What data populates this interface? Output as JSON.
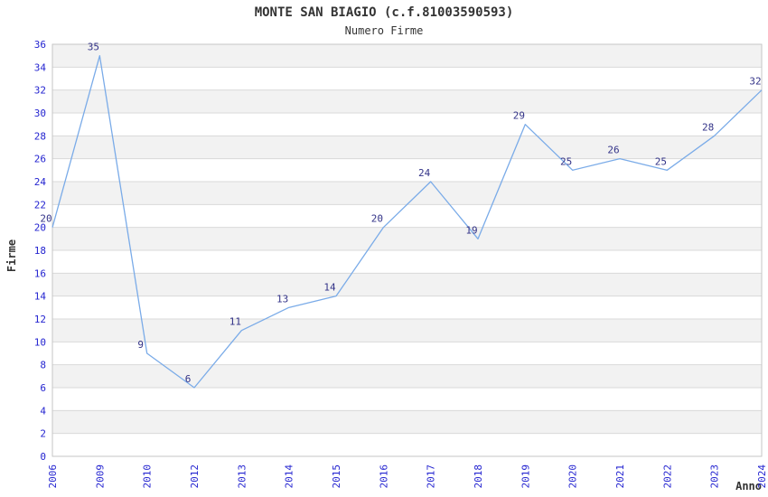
{
  "header": {
    "title": "MONTE SAN BIAGIO (c.f.81003590593)",
    "subtitle": "Numero Firme"
  },
  "chart_data": {
    "type": "line",
    "title": "MONTE SAN BIAGIO (c.f.81003590593)",
    "subtitle": "Numero Firme",
    "xlabel": "Anno",
    "ylabel": "Firme",
    "categories": [
      "2006",
      "2009",
      "2010",
      "2012",
      "2013",
      "2014",
      "2015",
      "2016",
      "2017",
      "2018",
      "2019",
      "2020",
      "2021",
      "2022",
      "2023",
      "2024"
    ],
    "values": [
      20,
      35,
      9,
      6,
      11,
      13,
      14,
      20,
      24,
      19,
      29,
      25,
      26,
      25,
      28,
      32
    ],
    "ylim": [
      0,
      36
    ],
    "ytick_step": 2,
    "grid": true,
    "legend": false,
    "band_fill": "alternating-2unit",
    "colors": {
      "line": "#7aabe8",
      "data_label": "#333388",
      "tick_label": "#2424d0",
      "band": "#f2f2f2",
      "gridline": "#d9d9d9",
      "plot_border": "#c6c6c6",
      "title_text": "#333333"
    }
  }
}
